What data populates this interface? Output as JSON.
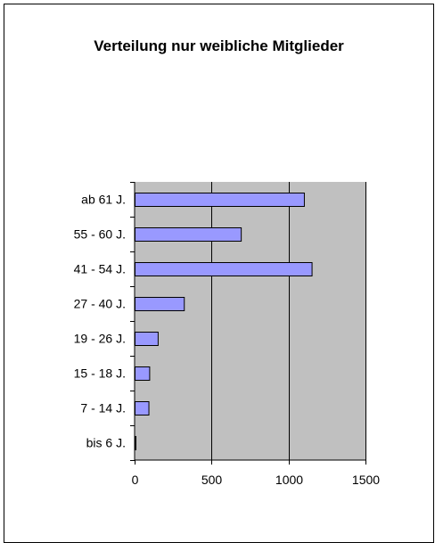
{
  "chart_data": {
    "type": "bar",
    "orientation": "horizontal",
    "title": "Verteilung nur weibliche Mitglieder",
    "categories": [
      "ab 61 J.",
      "55 - 60 J.",
      "41 - 54 J.",
      "27 - 40 J.",
      "19 - 26 J.",
      "15 - 18 J.",
      "7 - 14 J.",
      "bis 6 J."
    ],
    "values": [
      1100,
      690,
      1150,
      320,
      150,
      95,
      90,
      5
    ],
    "xlim": [
      0,
      1500
    ],
    "xticks": [
      "0",
      "500",
      "1000",
      "1500"
    ],
    "xlabel": "",
    "ylabel": "",
    "grid": "vertical lines at major ticks",
    "legend": "none",
    "colors": {
      "bar_fill": "#9999ff",
      "bar_stroke": "#000000",
      "plot_background": "#c0c0c0",
      "gridline": "#000000"
    }
  }
}
